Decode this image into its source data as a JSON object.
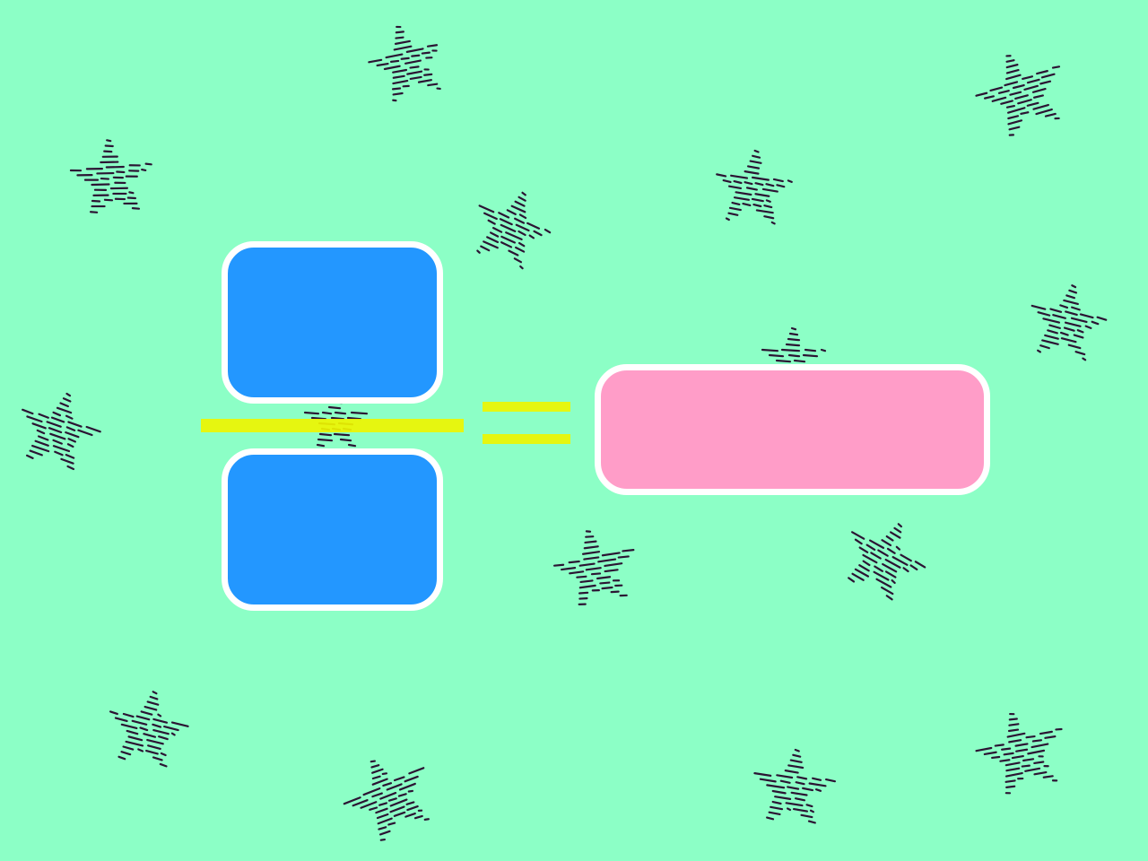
{
  "colors": {
    "background": "#8cffc6",
    "operand_box": "#2397ff",
    "answer_box": "#ff9dc8",
    "box_border": "#ffffff",
    "operator": "#eef500",
    "star_hatch": "#2b1433"
  },
  "diagram": {
    "type": "fraction-equation",
    "numerator": "",
    "denominator": "",
    "answer": "",
    "operator": "="
  },
  "decoration": {
    "icon": "hatched-star-icon",
    "star_count": 16
  }
}
